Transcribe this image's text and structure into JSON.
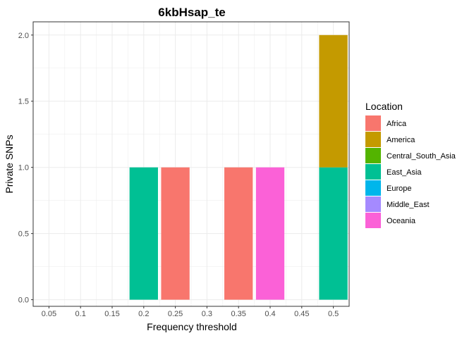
{
  "chart_data": {
    "type": "bar",
    "stacked": true,
    "title": "6kbHsap_te",
    "xlabel": "Frequency threshold",
    "ylabel": "Private SNPs",
    "x_ticks": [
      "0.05",
      "0.1",
      "0.15",
      "0.2",
      "0.25",
      "0.3",
      "0.35",
      "0.4",
      "0.45",
      "0.5"
    ],
    "y_ticks": [
      "0.0",
      "0.5",
      "1.0",
      "1.5",
      "2.0"
    ],
    "xlim": [
      0.025,
      0.525
    ],
    "ylim": [
      -0.05,
      2.1
    ],
    "grid": true,
    "legend_position": "right",
    "legend_title": "Location",
    "categories": [
      "Africa",
      "America",
      "Central_South_Asia",
      "East_Asia",
      "Europe",
      "Middle_East",
      "Oceania"
    ],
    "colors": {
      "Africa": "#F8766D",
      "America": "#C49A00",
      "Central_South_Asia": "#53B400",
      "East_Asia": "#00C094",
      "Europe": "#00B6EB",
      "Middle_East": "#A58AFF",
      "Oceania": "#FB61D7"
    },
    "bars": [
      {
        "x": 0.2,
        "location": "East_Asia",
        "y0": 0,
        "y1": 1
      },
      {
        "x": 0.25,
        "location": "Africa",
        "y0": 0,
        "y1": 1
      },
      {
        "x": 0.35,
        "location": "Africa",
        "y0": 0,
        "y1": 1
      },
      {
        "x": 0.4,
        "location": "Oceania",
        "y0": 0,
        "y1": 1
      },
      {
        "x": 0.5,
        "location": "East_Asia",
        "y0": 0,
        "y1": 1
      },
      {
        "x": 0.5,
        "location": "America",
        "y0": 1,
        "y1": 2
      }
    ],
    "bar_width": 0.045
  }
}
